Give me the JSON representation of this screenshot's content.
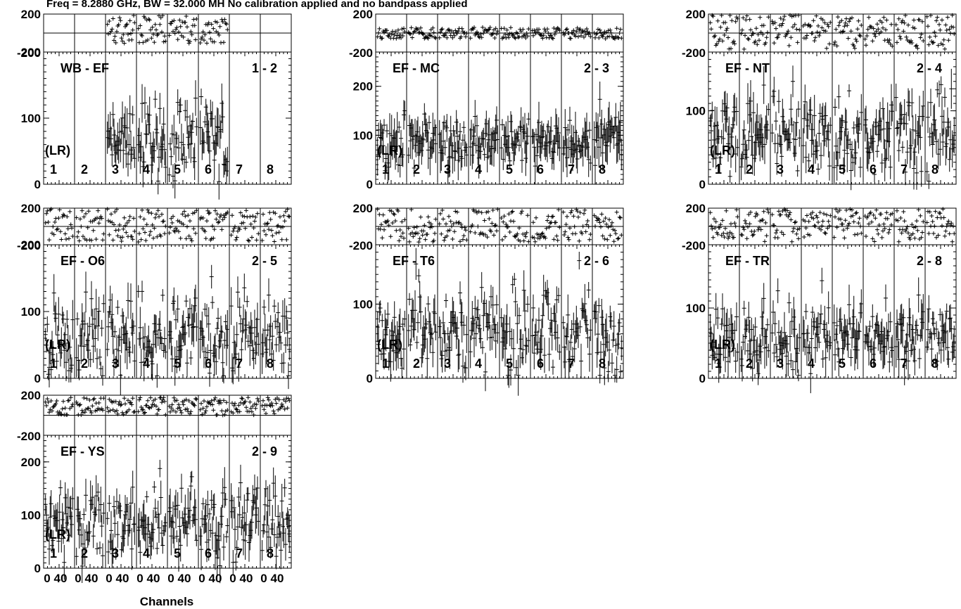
{
  "title": "Freq = 8.2880 GHz, BW = 32.000 MH   No calibration applied and no bandpass applied",
  "x_axis": {
    "label": "Channels",
    "tick_labels": [
      "0",
      "40",
      "0",
      "40",
      "0",
      "40",
      "0",
      "40",
      "0",
      "40",
      "0",
      "40",
      "0",
      "40",
      "0",
      "40"
    ]
  },
  "polarization_label": "(LR)",
  "sub_band_labels": [
    "1",
    "2",
    "3",
    "4",
    "5",
    "6",
    "7",
    "8"
  ],
  "phase_axis": {
    "tick_labels": [
      "200",
      "-200"
    ],
    "range": [
      -200,
      200
    ]
  },
  "colors": {
    "data": "#000000",
    "background": "#ffffff"
  },
  "chart_data": [
    {
      "type": "scatter",
      "baseline": "WB - EF",
      "baseline_id": "1 - 2",
      "amp_ticks": [
        "0",
        "100",
        "200"
      ],
      "amp_range": [
        0,
        200
      ],
      "subbands_with_data": [
        3,
        4,
        5,
        6
      ],
      "amp_level": 65,
      "amp_spread": 45,
      "phase_mean": 40,
      "phase_spread": 150
    },
    {
      "type": "scatter",
      "baseline": "EF - MC",
      "baseline_id": "2 - 3",
      "amp_ticks": [
        "0",
        "100",
        "200"
      ],
      "amp_range": [
        0,
        270
      ],
      "subbands_with_data": [
        1,
        2,
        3,
        4,
        5,
        6,
        7,
        8
      ],
      "amp_level": 85,
      "amp_spread": 35,
      "phase_mean": 0,
      "phase_spread": 60
    },
    {
      "type": "scatter",
      "baseline": "EF - NT",
      "baseline_id": "2 - 4",
      "amp_ticks": [
        "0",
        "100"
      ],
      "amp_range": [
        0,
        180
      ],
      "subbands_with_data": [
        1,
        2,
        3,
        4,
        5,
        6,
        7,
        8
      ],
      "amp_level": 60,
      "amp_spread": 40,
      "phase_mean": 30,
      "phase_spread": 170
    },
    {
      "type": "scatter",
      "baseline": "EF - O6",
      "baseline_id": "2 - 5",
      "amp_ticks": [
        "0",
        "100",
        "200"
      ],
      "amp_range": [
        0,
        200
      ],
      "subbands_with_data": [
        1,
        2,
        3,
        4,
        5,
        6,
        7,
        8
      ],
      "amp_level": 60,
      "amp_spread": 40,
      "phase_mean": 20,
      "phase_spread": 180
    },
    {
      "type": "scatter",
      "baseline": "EF - T6",
      "baseline_id": "2 - 6",
      "amp_ticks": [
        "0",
        "100"
      ],
      "amp_range": [
        0,
        180
      ],
      "subbands_with_data": [
        1,
        2,
        3,
        4,
        5,
        6,
        7,
        8
      ],
      "amp_level": 60,
      "amp_spread": 40,
      "phase_mean": 10,
      "phase_spread": 180
    },
    {
      "type": "scatter",
      "baseline": "EF - TR",
      "baseline_id": "2 - 8",
      "amp_ticks": [
        "0",
        "100"
      ],
      "amp_range": [
        0,
        190
      ],
      "subbands_with_data": [
        1,
        2,
        3,
        4,
        5,
        6,
        7,
        8
      ],
      "amp_level": 55,
      "amp_spread": 35,
      "phase_mean": 30,
      "phase_spread": 170
    },
    {
      "type": "scatter",
      "baseline": "EF - YS",
      "baseline_id": "2 - 9",
      "amp_ticks": [
        "0",
        "100",
        "200"
      ],
      "amp_range": [
        0,
        250
      ],
      "subbands_with_data": [
        1,
        2,
        3,
        4,
        5,
        6,
        7,
        8
      ],
      "amp_level": 80,
      "amp_spread": 45,
      "phase_mean": 90,
      "phase_spread": 90
    }
  ]
}
